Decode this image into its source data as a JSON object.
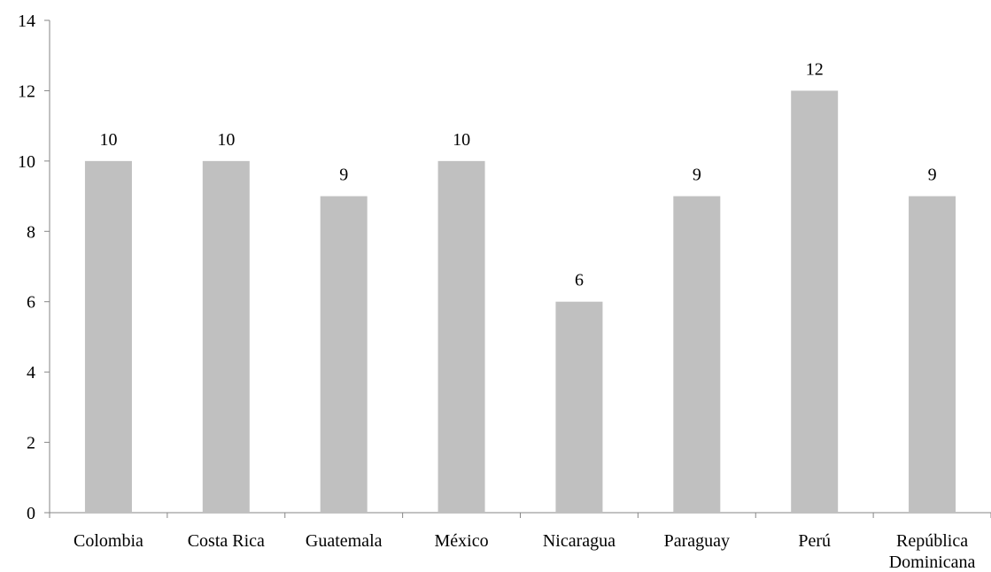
{
  "chart_data": {
    "type": "bar",
    "title": "",
    "xlabel": "",
    "ylabel": "",
    "categories": [
      "Colombia",
      "Costa Rica",
      "Guatemala",
      "México",
      "Nicaragua",
      "Paraguay",
      "Perú",
      "República Dominicana"
    ],
    "values": [
      10,
      10,
      9,
      10,
      6,
      9,
      12,
      9
    ],
    "ylim": [
      0,
      14
    ],
    "yticks": [
      0,
      2,
      4,
      6,
      8,
      10,
      12,
      14
    ],
    "grid": false,
    "legend": "none",
    "bar_color": "#c0c0c0",
    "axis_color": "#868686"
  }
}
